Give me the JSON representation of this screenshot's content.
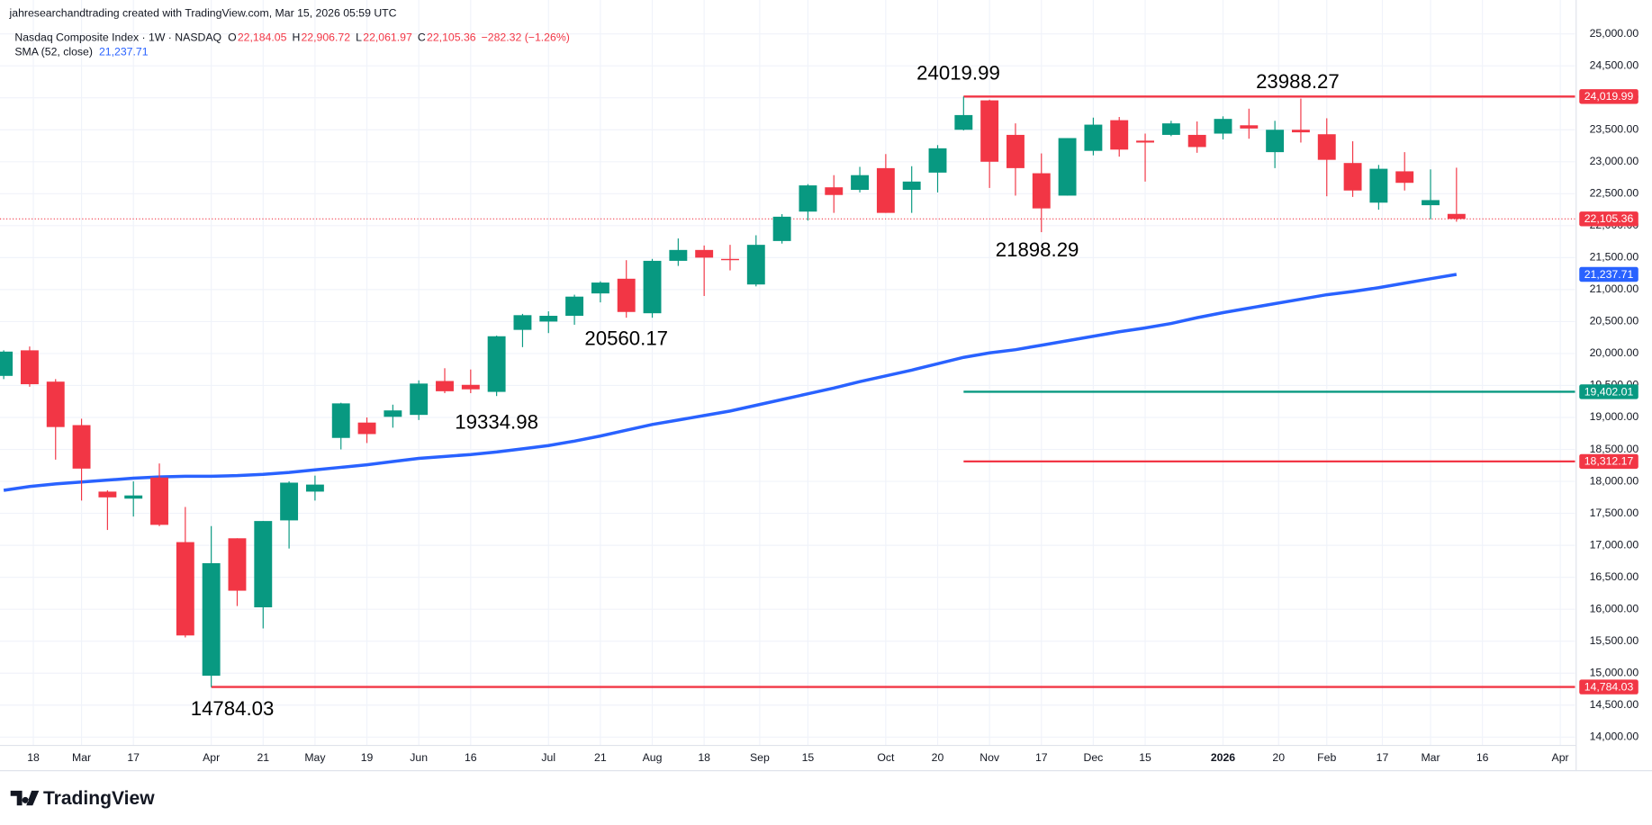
{
  "chart_data": {
    "type": "candlestick",
    "attribution": "jahresearchandtrading created with TradingView.com, Mar 15, 2026 05:59 UTC",
    "symbol": "Nasdaq Composite Index · 1W · NASDAQ",
    "ohlc_labels": [
      {
        "key": "O",
        "value": "22,184.05"
      },
      {
        "key": "H",
        "value": "22,906.72"
      },
      {
        "key": "L",
        "value": "22,061.97"
      },
      {
        "key": "C",
        "value": "22,105.36"
      }
    ],
    "change_label": "−282.32 (−1.26%)",
    "branding": "TradingView",
    "x": [
      "2025-02-10",
      "2025-02-17",
      "2025-02-24",
      "2025-03-03",
      "2025-03-10",
      "2025-03-17",
      "2025-03-24",
      "2025-03-31",
      "2025-04-07",
      "2025-04-14",
      "2025-04-21",
      "2025-04-28",
      "2025-05-05",
      "2025-05-12",
      "2025-05-19",
      "2025-05-26",
      "2025-06-02",
      "2025-06-09",
      "2025-06-16",
      "2025-06-23",
      "2025-06-30",
      "2025-07-07",
      "2025-07-14",
      "2025-07-21",
      "2025-07-28",
      "2025-08-04",
      "2025-08-11",
      "2025-08-18",
      "2025-08-25",
      "2025-09-01",
      "2025-09-08",
      "2025-09-15",
      "2025-09-22",
      "2025-09-29",
      "2025-10-06",
      "2025-10-13",
      "2025-10-20",
      "2025-10-27",
      "2025-11-03",
      "2025-11-10",
      "2025-11-17",
      "2025-11-24",
      "2025-12-01",
      "2025-12-08",
      "2025-12-15",
      "2025-12-22",
      "2025-12-29",
      "2026-01-05",
      "2026-01-12",
      "2026-01-19",
      "2026-01-26",
      "2026-02-02",
      "2026-02-09",
      "2026-02-16",
      "2026-02-23",
      "2026-03-02",
      "2026-03-09"
    ],
    "series": [
      {
        "name": "Nasdaq Composite Index",
        "up_color": "#089981",
        "down_color": "#f23645",
        "open": [
          19650,
          20050,
          19560,
          18880,
          17840,
          17730,
          18060,
          17050,
          14960,
          17110,
          16030,
          17390,
          17840,
          18680,
          18920,
          19010,
          19040,
          19570,
          19510,
          19400,
          20370,
          20500,
          20590,
          20940,
          21170,
          20630,
          21450,
          21620,
          21480,
          21080,
          21760,
          22220,
          22600,
          22560,
          22900,
          22560,
          22830,
          23500,
          23960,
          23420,
          22820,
          22470,
          23170,
          23650,
          23330,
          23420,
          23420,
          23440,
          23570,
          23150,
          23500,
          23430,
          22980,
          22360,
          22850,
          22320,
          22184.05
        ],
        "high": [
          20050,
          20110,
          19600,
          18980,
          17860,
          18000,
          18280,
          17600,
          17300,
          17110,
          17380,
          18000,
          18090,
          19230,
          19000,
          19200,
          19580,
          19770,
          19750,
          20280,
          20620,
          20660,
          20920,
          21130,
          21460,
          21480,
          21800,
          21690,
          21700,
          21850,
          22180,
          22650,
          22790,
          22920,
          23120,
          22930,
          23260,
          24019.99,
          23970,
          23600,
          23130,
          23370,
          23690,
          23700,
          23440,
          23640,
          23630,
          23710,
          23830,
          23640,
          23988.27,
          23680,
          23320,
          22950,
          23150,
          22880,
          22906.72
        ],
        "low": [
          19600,
          19480,
          18340,
          17700,
          17240,
          17450,
          17300,
          15560,
          14784.03,
          16050,
          15700,
          16950,
          17700,
          18500,
          18600,
          18840,
          18960,
          19380,
          19380,
          19334.98,
          20100,
          20320,
          20450,
          20800,
          20560.17,
          20560,
          21370,
          20900,
          21300,
          21050,
          21720,
          22080,
          22200,
          22520,
          22200,
          22200,
          22520,
          23490,
          22590,
          22470,
          21898.29,
          22470,
          23100,
          23080,
          22690,
          23400,
          23140,
          23350,
          23360,
          22900,
          23300,
          22460,
          22450,
          22250,
          22550,
          22100,
          22061.97
        ],
        "close": [
          20030,
          19520,
          18850,
          18200,
          17750,
          17780,
          17320,
          15590,
          16720,
          16290,
          17380,
          17980,
          17950,
          19220,
          18740,
          19110,
          19530,
          19410,
          19440,
          20270,
          20600,
          20590,
          20890,
          21110,
          20650,
          21450,
          21620,
          21500,
          21460,
          21700,
          22140,
          22630,
          22480,
          22790,
          22200,
          22690,
          23210,
          23730,
          23000,
          22900,
          22270,
          23370,
          23580,
          23190,
          23300,
          23600,
          23230,
          23670,
          23520,
          23500,
          23460,
          23030,
          22550,
          22890,
          22670,
          22400,
          22105.36
        ]
      }
    ],
    "sma": {
      "name": "SMA (52, close)",
      "color": "#2962ff",
      "value_label": "21,237.71",
      "values": [
        17860,
        17920,
        17960,
        17990,
        18020,
        18050,
        18070,
        18080,
        18080,
        18090,
        18110,
        18140,
        18180,
        18220,
        18260,
        18310,
        18360,
        18390,
        18420,
        18460,
        18510,
        18560,
        18630,
        18710,
        18800,
        18890,
        18960,
        19030,
        19100,
        19190,
        19280,
        19370,
        19460,
        19560,
        19650,
        19740,
        19840,
        19940,
        20010,
        20060,
        20130,
        20200,
        20270,
        20340,
        20400,
        20470,
        20560,
        20640,
        20710,
        20780,
        20850,
        20920,
        20970,
        21030,
        21100,
        21170,
        21237.71
      ]
    },
    "levels": [
      {
        "value": 24019.99,
        "label": "24,019.99",
        "color": "#f23645",
        "from": "2025-10-27"
      },
      {
        "value": 19402.01,
        "label": "19,402.01",
        "color": "#089981",
        "from": "2025-10-27"
      },
      {
        "value": 18312.17,
        "label": "18,312.17",
        "color": "#f23645",
        "from": "2025-10-27"
      },
      {
        "value": 14784.03,
        "label": "14,784.03",
        "color": "#f23645",
        "from": "2025-04-07"
      }
    ],
    "last_price": {
      "value": 22105.36,
      "label": "22,105.36",
      "color": "#f23645"
    },
    "annotations": [
      "24019.99",
      "23988.27",
      "21898.29",
      "20560.17",
      "19334.98",
      "14784.03"
    ],
    "xlim": [
      "2025-02-09",
      "2026-04-10"
    ],
    "xticks": [
      {
        "value": "2025-02-18",
        "label": "18"
      },
      {
        "value": "2025-03-03",
        "label": "Mar"
      },
      {
        "value": "2025-03-17",
        "label": "17"
      },
      {
        "value": "2025-04-07",
        "label": "Apr"
      },
      {
        "value": "2025-04-21",
        "label": "21"
      },
      {
        "value": "2025-05-05",
        "label": "May"
      },
      {
        "value": "2025-05-19",
        "label": "19"
      },
      {
        "value": "2025-06-02",
        "label": "Jun"
      },
      {
        "value": "2025-06-16",
        "label": "16"
      },
      {
        "value": "2025-07-07",
        "label": "Jul"
      },
      {
        "value": "2025-07-21",
        "label": "21"
      },
      {
        "value": "2025-08-04",
        "label": "Aug"
      },
      {
        "value": "2025-08-18",
        "label": "18"
      },
      {
        "value": "2025-09-02",
        "label": "Sep"
      },
      {
        "value": "2025-09-15",
        "label": "15"
      },
      {
        "value": "2025-10-06",
        "label": "Oct"
      },
      {
        "value": "2025-10-20",
        "label": "20"
      },
      {
        "value": "2025-11-03",
        "label": "Nov"
      },
      {
        "value": "2025-11-17",
        "label": "17"
      },
      {
        "value": "2025-12-01",
        "label": "Dec"
      },
      {
        "value": "2025-12-15",
        "label": "15"
      },
      {
        "value": "2026-01-05",
        "label": "2026"
      },
      {
        "value": "2026-01-20",
        "label": "20"
      },
      {
        "value": "2026-02-02",
        "label": "Feb"
      },
      {
        "value": "2026-02-17",
        "label": "17"
      },
      {
        "value": "2026-03-02",
        "label": "Mar"
      },
      {
        "value": "2026-03-16",
        "label": "16"
      },
      {
        "value": "2026-04-06",
        "label": "Apr"
      }
    ],
    "ylim": [
      13870,
      25530
    ],
    "yticks": [
      {
        "value": 14000,
        "label": "14,000.00"
      },
      {
        "value": 14500,
        "label": "14,500.00"
      },
      {
        "value": 15000,
        "label": "15,000.00"
      },
      {
        "value": 15500,
        "label": "15,500.00"
      },
      {
        "value": 16000,
        "label": "16,000.00"
      },
      {
        "value": 16500,
        "label": "16,500.00"
      },
      {
        "value": 17000,
        "label": "17,000.00"
      },
      {
        "value": 17500,
        "label": "17,500.00"
      },
      {
        "value": 18000,
        "label": "18,000.00"
      },
      {
        "value": 18500,
        "label": "18,500.00"
      },
      {
        "value": 19000,
        "label": "19,000.00"
      },
      {
        "value": 19500,
        "label": "19,500.00"
      },
      {
        "value": 20000,
        "label": "20,000.00"
      },
      {
        "value": 20500,
        "label": "20,500.00"
      },
      {
        "value": 21000,
        "label": "21,000.00"
      },
      {
        "value": 21500,
        "label": "21,500.00"
      },
      {
        "value": 22000,
        "label": "22,000.00"
      },
      {
        "value": 22500,
        "label": "22,500.00"
      },
      {
        "value": 23000,
        "label": "23,000.00"
      },
      {
        "value": 23500,
        "label": "23,500.00"
      },
      {
        "value": 24000,
        "label": "24,000.00"
      },
      {
        "value": 24500,
        "label": "24,500.00"
      },
      {
        "value": 25000,
        "label": "25,000.00"
      }
    ],
    "grid": true
  }
}
